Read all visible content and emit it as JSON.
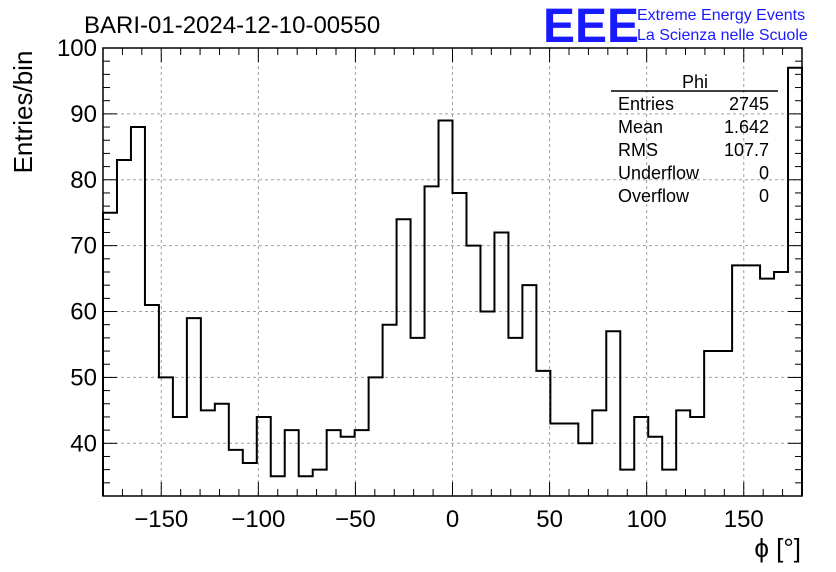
{
  "chart_data": {
    "type": "bar",
    "title": "BARI-01-2024-12-10-00550",
    "xlabel": "ϕ [°]",
    "ylabel": "Entries/bin",
    "xlim": [
      -180,
      180
    ],
    "ylim": [
      32,
      100
    ],
    "bin_width": 7.2,
    "x_ticks": [
      -150,
      -100,
      -50,
      0,
      50,
      100,
      150
    ],
    "x_tick_labels": [
      "−150",
      "−100",
      "−50",
      "0",
      "50",
      "100",
      "150"
    ],
    "y_ticks": [
      40,
      50,
      60,
      70,
      80,
      90,
      100
    ],
    "y_tick_labels": [
      "40",
      "50",
      "60",
      "70",
      "80",
      "90",
      "100"
    ],
    "grid": true,
    "values": [
      75,
      83,
      88,
      61,
      50,
      44,
      59,
      45,
      46,
      39,
      37,
      44,
      35,
      42,
      35,
      36,
      42,
      41,
      42,
      50,
      58,
      74,
      56,
      79,
      89,
      78,
      70,
      60,
      72,
      56,
      64,
      51,
      43,
      43,
      40,
      45,
      57,
      36,
      44,
      41,
      36,
      45,
      44,
      54,
      54,
      67,
      67,
      65,
      66,
      97
    ],
    "stats": {
      "name": "Phi",
      "rows": [
        {
          "label": "Entries",
          "value": "2745"
        },
        {
          "label": "Mean",
          "value": "1.642"
        },
        {
          "label": "RMS",
          "value": "107.7"
        },
        {
          "label": "Underflow",
          "value": "0"
        },
        {
          "label": "Overflow",
          "value": "0"
        }
      ]
    }
  },
  "logo": {
    "big": "EEE",
    "line1": "Extreme Energy Events",
    "line2": "La Scienza nelle Scuole",
    "color": "#1a1aff"
  }
}
